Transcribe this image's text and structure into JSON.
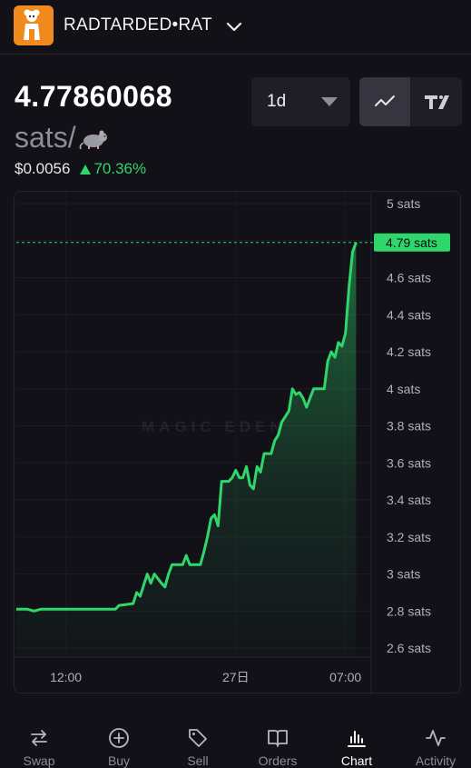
{
  "header": {
    "token_name": "RADTARDED•RAT",
    "logo_color": "#f08a1c"
  },
  "price": {
    "value": "4.77860068",
    "unit": "sats/",
    "usd": "$0.0056",
    "change": "70.36%",
    "change_color": "#2fd66b"
  },
  "controls": {
    "interval": "1d",
    "chart_modes": [
      "line-chart-icon",
      "candlestick-icon"
    ],
    "active_mode": "line"
  },
  "chart": {
    "watermark": "MAGIC EDEN",
    "current_label": "4.79 sats",
    "accent": "#2fd66b"
  },
  "chart_data": {
    "type": "line",
    "y_unit": "sats",
    "y_ticks": [
      "5 sats",
      "4.8 sats",
      "4.6 sats",
      "4.4 sats",
      "4.2 sats",
      "4 sats",
      "3.8 sats",
      "3.6 sats",
      "3.4 sats",
      "3.2 sats",
      "3 sats",
      "2.8 sats",
      "2.6 sats"
    ],
    "y_tick_values": [
      5.0,
      4.8,
      4.6,
      4.4,
      4.2,
      4.0,
      3.8,
      3.6,
      3.4,
      3.2,
      3.0,
      2.8,
      2.6
    ],
    "ylim": [
      2.55,
      5.05
    ],
    "x_ticks": [
      "12:00",
      "27日",
      "07:00"
    ],
    "x_tick_positions": [
      0.14,
      0.62,
      0.93
    ],
    "current_value": 4.79,
    "points": [
      [
        0.0,
        2.81
      ],
      [
        0.03,
        2.81
      ],
      [
        0.05,
        2.8
      ],
      [
        0.07,
        2.81
      ],
      [
        0.14,
        2.81
      ],
      [
        0.22,
        2.81
      ],
      [
        0.28,
        2.81
      ],
      [
        0.29,
        2.83
      ],
      [
        0.33,
        2.84
      ],
      [
        0.34,
        2.9
      ],
      [
        0.35,
        2.88
      ],
      [
        0.36,
        2.94
      ],
      [
        0.37,
        3.0
      ],
      [
        0.38,
        2.95
      ],
      [
        0.39,
        3.0
      ],
      [
        0.41,
        2.95
      ],
      [
        0.42,
        2.93
      ],
      [
        0.43,
        3.0
      ],
      [
        0.44,
        3.05
      ],
      [
        0.47,
        3.05
      ],
      [
        0.48,
        3.1
      ],
      [
        0.49,
        3.05
      ],
      [
        0.52,
        3.05
      ],
      [
        0.53,
        3.12
      ],
      [
        0.54,
        3.2
      ],
      [
        0.55,
        3.3
      ],
      [
        0.56,
        3.32
      ],
      [
        0.57,
        3.26
      ],
      [
        0.58,
        3.5
      ],
      [
        0.6,
        3.5
      ],
      [
        0.61,
        3.52
      ],
      [
        0.62,
        3.56
      ],
      [
        0.63,
        3.52
      ],
      [
        0.64,
        3.52
      ],
      [
        0.65,
        3.58
      ],
      [
        0.66,
        3.48
      ],
      [
        0.67,
        3.46
      ],
      [
        0.68,
        3.58
      ],
      [
        0.69,
        3.55
      ],
      [
        0.7,
        3.65
      ],
      [
        0.72,
        3.65
      ],
      [
        0.73,
        3.72
      ],
      [
        0.74,
        3.75
      ],
      [
        0.75,
        3.82
      ],
      [
        0.76,
        3.85
      ],
      [
        0.77,
        3.88
      ],
      [
        0.78,
        4.0
      ],
      [
        0.79,
        3.97
      ],
      [
        0.8,
        3.98
      ],
      [
        0.81,
        3.95
      ],
      [
        0.82,
        3.9
      ],
      [
        0.83,
        3.95
      ],
      [
        0.84,
        4.0
      ],
      [
        0.87,
        4.0
      ],
      [
        0.88,
        4.15
      ],
      [
        0.89,
        4.2
      ],
      [
        0.9,
        4.17
      ],
      [
        0.91,
        4.25
      ],
      [
        0.92,
        4.23
      ],
      [
        0.93,
        4.3
      ],
      [
        0.94,
        4.55
      ],
      [
        0.95,
        4.74
      ],
      [
        0.96,
        4.79
      ]
    ]
  },
  "tabbar": {
    "tabs": [
      {
        "label": "Swap",
        "icon": "swap-icon",
        "active": false
      },
      {
        "label": "Buy",
        "icon": "plus-circle-icon",
        "active": false
      },
      {
        "label": "Sell",
        "icon": "tag-icon",
        "active": false
      },
      {
        "label": "Orders",
        "icon": "book-icon",
        "active": false
      },
      {
        "label": "Chart",
        "icon": "bar-chart-icon",
        "active": true
      },
      {
        "label": "Activity",
        "icon": "activity-icon",
        "active": false
      }
    ]
  }
}
